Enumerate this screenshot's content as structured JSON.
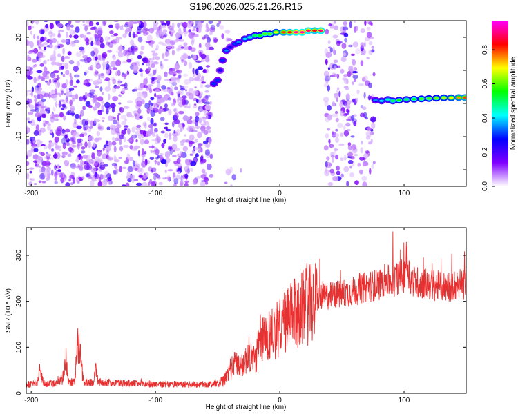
{
  "title": "S196.2026.025.21.26.R15",
  "chart_data": [
    {
      "type": "heatmap",
      "name": "spectrogram",
      "xlabel": "Height of straight line (km)",
      "ylabel": "Frequency (Hz)",
      "xlim": [
        -204,
        150
      ],
      "ylim": [
        -25,
        25
      ],
      "xticks": [
        -200,
        -100,
        0,
        100
      ],
      "yticks": [
        -20,
        -10,
        0,
        10,
        20
      ],
      "x_tick_labels": [
        "-200",
        "-100",
        "0",
        "100"
      ],
      "y_tick_labels": [
        "-20",
        "-10",
        "0",
        "10",
        "20"
      ],
      "noise_regions": [
        {
          "x0": -204,
          "x1": -55,
          "y0": -25,
          "y1": 25,
          "density": 0.9
        },
        {
          "x0": 37,
          "x1": 76,
          "y0": -25,
          "y1": 25,
          "density": 0.55
        },
        {
          "x0": -57,
          "x1": -35,
          "y0": 19,
          "y1": 25,
          "density": 0.5
        },
        {
          "x0": -44,
          "x1": -30,
          "y0": -25,
          "y1": -20,
          "density": 0.4
        }
      ],
      "signal_track": [
        {
          "x": -53,
          "y": 6,
          "amp": 0.3
        },
        {
          "x": -50,
          "y": 7,
          "amp": 0.3
        },
        {
          "x": -48,
          "y": 10,
          "amp": 0.25
        },
        {
          "x": -46,
          "y": 13,
          "amp": 0.3
        },
        {
          "x": -43,
          "y": 16,
          "amp": 0.35
        },
        {
          "x": -40,
          "y": 17,
          "amp": 0.25
        },
        {
          "x": -36,
          "y": 18,
          "amp": 0.3
        },
        {
          "x": -33,
          "y": 18.5,
          "amp": 0.35
        },
        {
          "x": -28,
          "y": 19.5,
          "amp": 0.4
        },
        {
          "x": -24,
          "y": 20,
          "amp": 0.45
        },
        {
          "x": -20,
          "y": 20.5,
          "amp": 0.5
        },
        {
          "x": -16,
          "y": 20.5,
          "amp": 0.55
        },
        {
          "x": -12,
          "y": 21,
          "amp": 0.6
        },
        {
          "x": -8,
          "y": 21,
          "amp": 0.6
        },
        {
          "x": -3,
          "y": 21.5,
          "amp": 0.7
        },
        {
          "x": 3,
          "y": 21.5,
          "amp": 0.8
        },
        {
          "x": 8,
          "y": 21.5,
          "amp": 0.85
        },
        {
          "x": 13,
          "y": 21.5,
          "amp": 0.95
        },
        {
          "x": 18,
          "y": 21.5,
          "amp": 0.95
        },
        {
          "x": 23,
          "y": 22,
          "amp": 0.9
        },
        {
          "x": 28,
          "y": 22,
          "amp": 0.85
        },
        {
          "x": 33,
          "y": 22,
          "amp": 0.9
        },
        {
          "x": 77,
          "y": 1,
          "amp": 0.35
        },
        {
          "x": 82,
          "y": 0.8,
          "amp": 0.4
        },
        {
          "x": 87,
          "y": 1.2,
          "amp": 0.45
        },
        {
          "x": 91,
          "y": 0.8,
          "amp": 0.5
        },
        {
          "x": 96,
          "y": 1,
          "amp": 0.55
        },
        {
          "x": 102,
          "y": 1.2,
          "amp": 0.5
        },
        {
          "x": 108,
          "y": 1.3,
          "amp": 0.55
        },
        {
          "x": 114,
          "y": 1.4,
          "amp": 0.6
        },
        {
          "x": 120,
          "y": 1.5,
          "amp": 0.6
        },
        {
          "x": 126,
          "y": 1.6,
          "amp": 0.62
        },
        {
          "x": 132,
          "y": 1.7,
          "amp": 0.65
        },
        {
          "x": 138,
          "y": 1.7,
          "amp": 0.7
        },
        {
          "x": 144,
          "y": 1.8,
          "amp": 0.75
        },
        {
          "x": 149,
          "y": 1.8,
          "amp": 0.8
        }
      ],
      "colorbar": {
        "label": "Normalized spectral amplitude",
        "ticks": [
          0.0,
          0.2,
          0.4,
          0.6,
          0.8
        ],
        "tick_labels": [
          "0.0",
          "0.2",
          "0.4",
          "0.6",
          "0.8"
        ],
        "range": [
          0,
          0.97
        ],
        "colors": [
          "#ffffff",
          "#8000ff",
          "#0000ff",
          "#00ffff",
          "#00ff00",
          "#ffff00",
          "#ff0000",
          "#ff00ff"
        ]
      }
    },
    {
      "type": "line",
      "name": "snr",
      "xlabel": "Height of straight line (km)",
      "ylabel": "SNR (10 * v/v)",
      "xlim": [
        -204,
        150
      ],
      "ylim": [
        0,
        360
      ],
      "xticks": [
        -200,
        -100,
        0,
        100
      ],
      "yticks": [
        0,
        100,
        200,
        300
      ],
      "x_tick_labels": [
        "-200",
        "-100",
        "0",
        "100"
      ],
      "y_tick_labels": [
        "0",
        "100",
        "200",
        "300"
      ],
      "color": "#e83030",
      "series": [
        {
          "name": "SNR",
          "x": [
            -204,
            -195,
            -193,
            -190,
            -180,
            -175,
            -172,
            -170,
            -165,
            -163,
            -161,
            -158,
            -150,
            -148,
            -146,
            -140,
            -120,
            -100,
            -80,
            -60,
            -50,
            -45,
            -40,
            -35,
            -30,
            -25,
            -20,
            -15,
            -10,
            -5,
            0,
            5,
            10,
            15,
            20,
            30,
            40,
            50,
            60,
            70,
            80,
            85,
            90,
            95,
            100,
            102,
            105,
            110,
            120,
            130,
            140,
            150
          ],
          "y": [
            20,
            22,
            55,
            22,
            22,
            30,
            80,
            25,
            25,
            110,
            100,
            25,
            25,
            55,
            25,
            25,
            22,
            20,
            20,
            20,
            22,
            28,
            55,
            70,
            60,
            90,
            75,
            125,
            130,
            140,
            150,
            165,
            175,
            185,
            195,
            210,
            215,
            220,
            225,
            235,
            240,
            250,
            245,
            255,
            260,
            300,
            250,
            245,
            240,
            235,
            238,
            240
          ]
        }
      ]
    }
  ]
}
